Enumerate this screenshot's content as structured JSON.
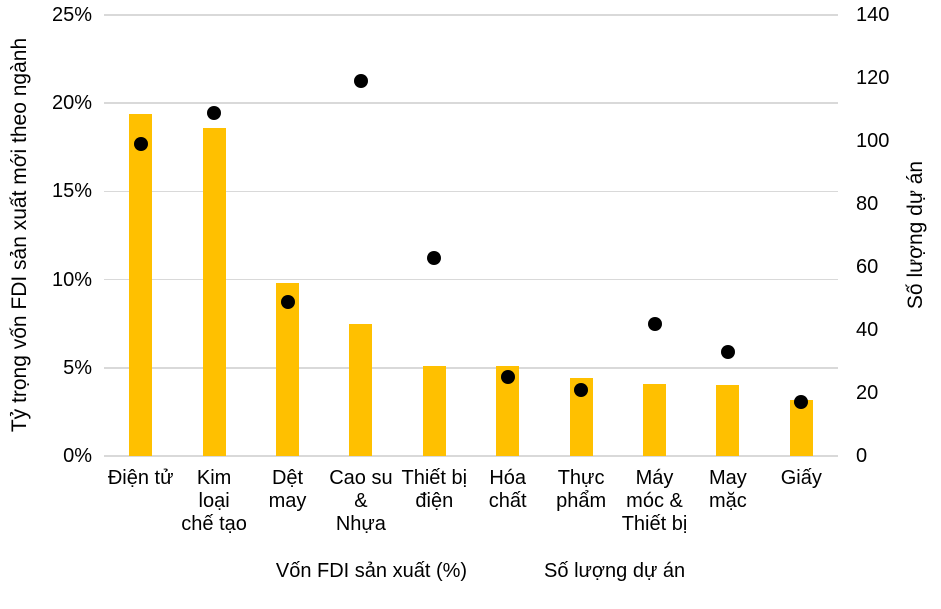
{
  "chart_data": {
    "type": "bar",
    "subtype": "dual-axis column + scatter",
    "categories": [
      "Điện tử",
      "Kim loại chế tạo",
      "Dệt may",
      "Cao su & Nhựa",
      "Thiết bị điện",
      "Hóa chất",
      "Thực phẩm",
      "Máy móc & Thiết bị",
      "May mặc",
      "Giấy"
    ],
    "category_labels_wrapped": [
      "Điện tử",
      "Kim\nloại\nchế tạo",
      "Dệt\nmay",
      "Cao su\n&\nNhựa",
      "Thiết bị\nđiện",
      "Hóa\nchất",
      "Thực\nphẩm",
      "Máy\nmóc &\nThiết bị",
      "May\nmặc",
      "Giấy"
    ],
    "series": [
      {
        "name": "Vốn FDI sản xuất (%)",
        "type": "bar",
        "axis": "left",
        "color": "#FFC000",
        "values": [
          19.4,
          18.6,
          9.8,
          7.5,
          5.1,
          5.1,
          4.4,
          4.1,
          4.0,
          3.2
        ]
      },
      {
        "name": "Số lượng dự án",
        "type": "scatter",
        "axis": "right",
        "color": "#000000",
        "values": [
          99,
          109,
          49,
          119,
          63,
          25,
          21,
          42,
          33,
          17
        ]
      }
    ],
    "ylabel_left": "Tỷ trọng vốn FDI sản xuất mới theo ngành",
    "ylabel_right": "Số lượng dự án",
    "yaxis_left": {
      "min": 0,
      "max": 25,
      "ticks": [
        {
          "v": 0,
          "label": "0%"
        },
        {
          "v": 5,
          "label": "5%"
        },
        {
          "v": 10,
          "label": "10%"
        },
        {
          "v": 15,
          "label": "15%"
        },
        {
          "v": 20,
          "label": "20%"
        },
        {
          "v": 25,
          "label": "25%"
        }
      ]
    },
    "yaxis_right": {
      "min": 0,
      "max": 140,
      "ticks": [
        {
          "v": 0,
          "label": "0"
        },
        {
          "v": 20,
          "label": "20"
        },
        {
          "v": 40,
          "label": "40"
        },
        {
          "v": 60,
          "label": "60"
        },
        {
          "v": 80,
          "label": "80"
        },
        {
          "v": 100,
          "label": "100"
        },
        {
          "v": 120,
          "label": "120"
        },
        {
          "v": 140,
          "label": "140"
        }
      ]
    },
    "grid": true,
    "legend_position": "bottom",
    "colors": {
      "gridline": "#D9D9D9",
      "axis_line": "#D9D9D9",
      "text": "#000000",
      "background": "#FFFFFF"
    }
  }
}
